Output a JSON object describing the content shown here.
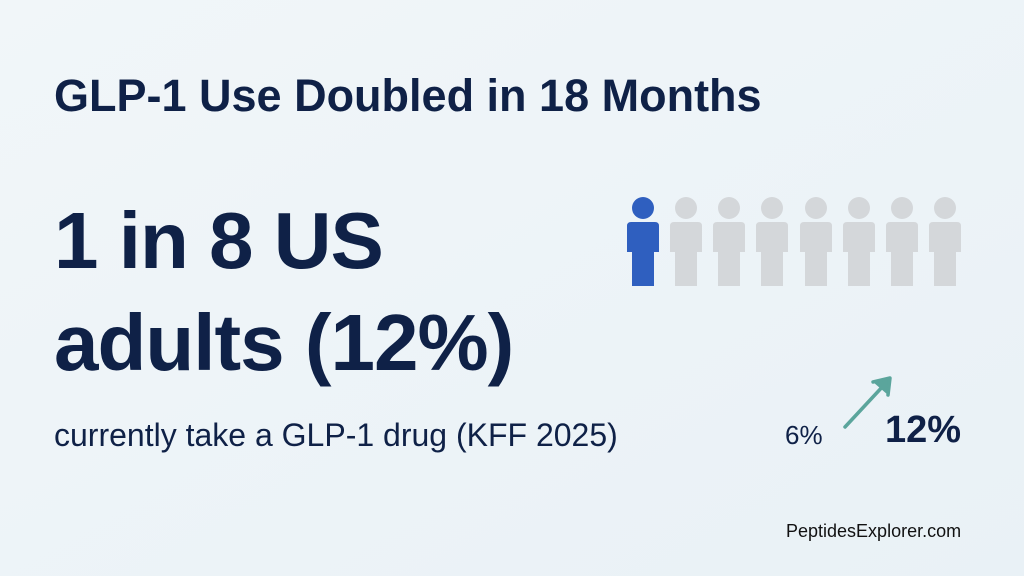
{
  "title": "GLP-1 Use Doubled in 18 Months",
  "headline": {
    "line1": "1 in 8 US",
    "line2": "adults (12%)"
  },
  "subtitle": "currently take a GLP-1 drug (KFF 2025)",
  "change": {
    "from": "6%",
    "to": "12%"
  },
  "footer": "PeptidesExplorer.com"
}
